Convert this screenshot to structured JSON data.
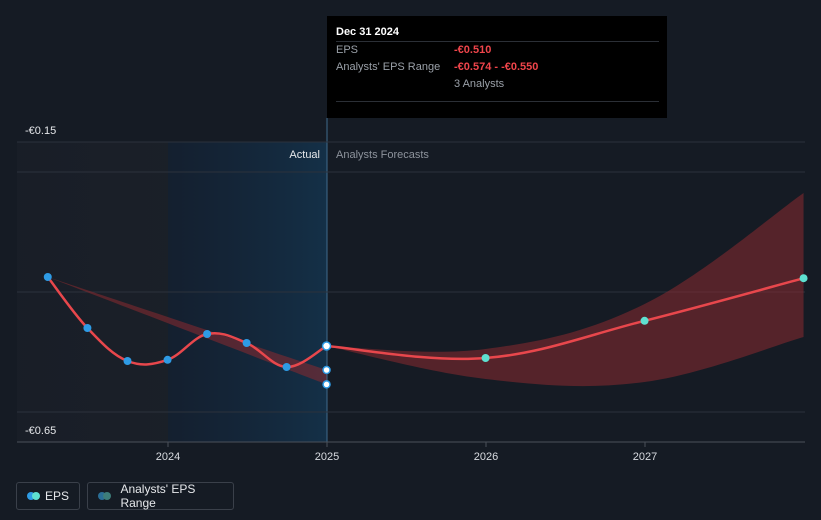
{
  "chart_data": {
    "type": "line",
    "title": "",
    "y_ticks": [
      "-€0.15",
      "-€0.65"
    ],
    "ylim": [
      -0.65,
      -0.15
    ],
    "x_ticks": [
      "2024",
      "2025",
      "2026",
      "2027"
    ],
    "region_labels": {
      "actual": "Actual",
      "forecast": "Analysts Forecasts"
    },
    "series": [
      {
        "name": "EPS",
        "color": "#e8474c",
        "actual_points": [
          {
            "x": "2023-03-31",
            "y": -0.395
          },
          {
            "x": "2023-06-30",
            "y": -0.48
          },
          {
            "x": "2023-09-30",
            "y": -0.535
          },
          {
            "x": "2023-12-31",
            "y": -0.533
          },
          {
            "x": "2024-03-31",
            "y": -0.49
          },
          {
            "x": "2024-06-30",
            "y": -0.505
          },
          {
            "x": "2024-09-30",
            "y": -0.545
          },
          {
            "x": "2024-12-31",
            "y": -0.51
          }
        ],
        "forecast_points": [
          {
            "x": "2025-12-31",
            "y": -0.53
          },
          {
            "x": "2026-12-31",
            "y": -0.468
          },
          {
            "x": "2027-12-31",
            "y": -0.397
          }
        ]
      }
    ],
    "range": {
      "name": "Analysts' EPS Range",
      "actual_band": [
        {
          "x": "2023-03-31",
          "low": -0.395,
          "high": -0.395
        },
        {
          "x": "2024-12-31",
          "low": -0.574,
          "high": -0.55
        }
      ],
      "forecast_band": [
        {
          "x": "2024-12-31",
          "low": -0.51,
          "high": -0.51
        },
        {
          "x": "2025-12-31",
          "low": -0.565,
          "high": -0.515
        },
        {
          "x": "2026-12-31",
          "low": -0.57,
          "high": -0.44
        },
        {
          "x": "2027-12-31",
          "low": -0.495,
          "high": -0.255
        }
      ]
    }
  },
  "tooltip": {
    "date": "Dec 31 2024",
    "rows": [
      {
        "label": "EPS",
        "value": "-€0.510"
      },
      {
        "label": "Analysts' EPS Range",
        "value": "-€0.574 - -€0.550"
      },
      {
        "label": "",
        "value": "3 Analysts"
      }
    ]
  },
  "legend": {
    "eps": {
      "label": "EPS",
      "colors": [
        "#2e9be5",
        "#5ee0d0"
      ]
    },
    "range": {
      "label": "Analysts' EPS Range",
      "colors": [
        "#2a6e96",
        "#3d7d7a"
      ]
    }
  }
}
